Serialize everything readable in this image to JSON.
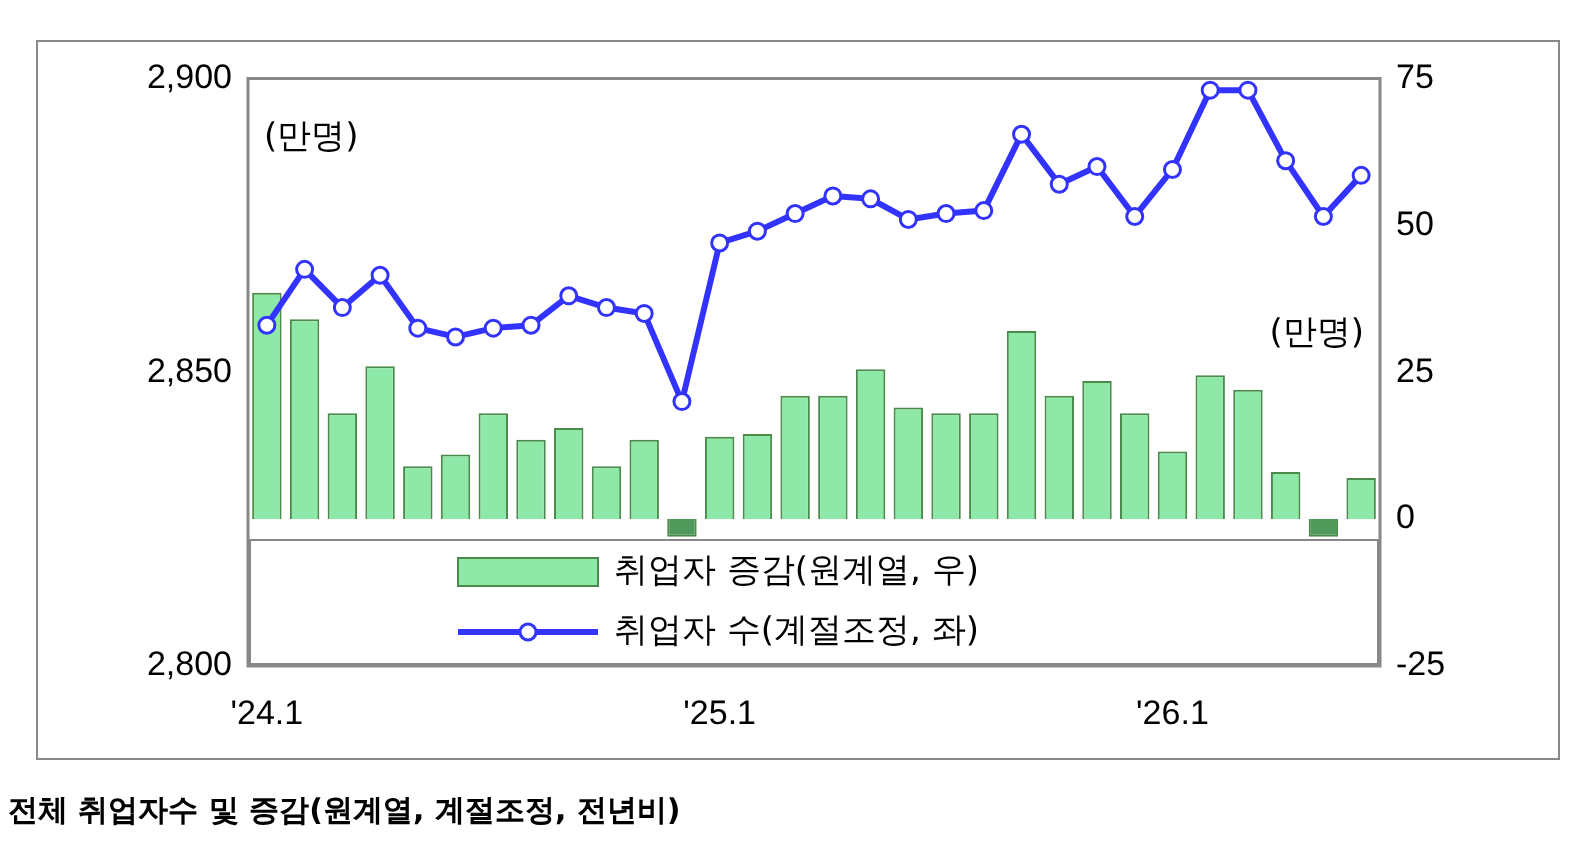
{
  "chart_data": {
    "type": "bar",
    "title": "전체 취업자수 및 증감(원계열, 계절조정, 전년비)",
    "categories": [
      "'24.1",
      null,
      null,
      null,
      null,
      null,
      null,
      null,
      null,
      null,
      null,
      null,
      "'25.1",
      null,
      null,
      null,
      null,
      null,
      null,
      null,
      null,
      null,
      null,
      null,
      "'26.1",
      null,
      null,
      null,
      null,
      null
    ],
    "series": [
      {
        "name": "취업자 증감(원계열, 우)",
        "axis": "y2",
        "color": "#8ee8a8",
        "colors": [
          "#8ee8a8",
          "#8ee8a8",
          "#8ee8a8",
          "#8ee8a8",
          "#8ee8a8",
          "#8ee8a8",
          "#8ee8a8",
          "#8ee8a8",
          "#8ee8a8",
          "#8ee8a8",
          "#8ee8a8",
          "#4f9a5a",
          "#8ee8a8",
          "#8ee8a8",
          "#8ee8a8",
          "#8ee8a8",
          "#8ee8a8",
          "#8ee8a8",
          "#8ee8a8",
          "#8ee8a8",
          "#8ee8a8",
          "#8ee8a8",
          "#8ee8a8",
          "#8ee8a8",
          "#8ee8a8",
          "#8ee8a8",
          "#8ee8a8",
          "#8ee8a8",
          "#4f9a5a",
          "#8ee8a8"
        ],
        "values": [
          38.5,
          34,
          18,
          26,
          9,
          11,
          18,
          13.5,
          15.5,
          9,
          13.5,
          -3,
          14,
          14.5,
          21,
          21,
          25.5,
          19,
          18,
          18,
          32,
          21,
          23.5,
          18,
          11.5,
          24.5,
          22,
          8,
          -3,
          7
        ]
      },
      {
        "name": "취업자 수(계절조정, 좌)",
        "type": "line",
        "color": "#3333ff",
        "values": [
          2858,
          2867.5,
          2861,
          2866.5,
          2857.5,
          2856,
          2857.5,
          2858,
          2863,
          2861,
          2860,
          2845,
          2872,
          2874,
          2877,
          2880,
          2879.5,
          2876,
          2877,
          2877.5,
          2890.5,
          2882,
          2885,
          2876.5,
          2884.5,
          2898,
          2898,
          2886,
          2876.5,
          2883.5
        ]
      }
    ],
    "ylim": [
      2800,
      2900
    ],
    "yticks": [
      {
        "value": 2800,
        "label": "2,800"
      },
      {
        "value": 2850,
        "label": "2,850"
      },
      {
        "value": 2900,
        "label": "2,900"
      }
    ],
    "y2lim": [
      -25,
      75
    ],
    "y2ticks": [
      -25,
      0,
      25,
      50,
      75
    ],
    "annotations": [
      "(만명)",
      "(만명)"
    ],
    "legend": "bottom",
    "marker": "circle",
    "line_style": "solid",
    "grid": false
  }
}
